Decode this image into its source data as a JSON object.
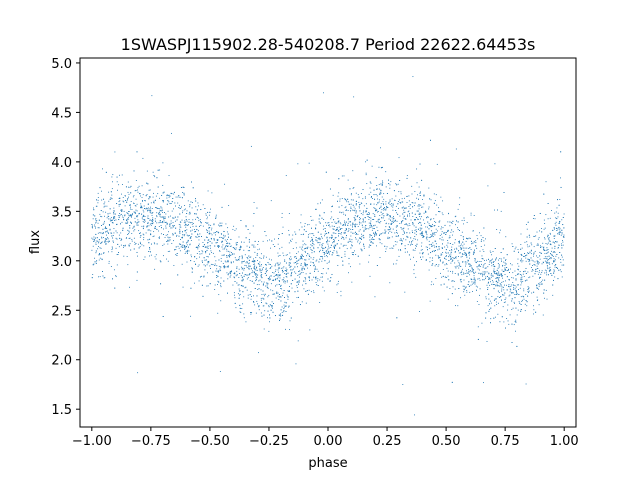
{
  "chart_data": {
    "type": "scatter",
    "title": "1SWASPJ115902.28-540208.7 Period 22622.64453s",
    "xlabel": "phase",
    "ylabel": "flux",
    "xlim": [
      -1.05,
      1.05
    ],
    "ylim": [
      1.32,
      5.05
    ],
    "x_ticks": [
      -1.0,
      -0.75,
      -0.5,
      -0.25,
      0.0,
      0.25,
      0.5,
      0.75,
      1.0
    ],
    "x_tick_labels": [
      "−1.00",
      "−0.75",
      "−0.50",
      "−0.25",
      "0.00",
      "0.25",
      "0.50",
      "0.75",
      "1.00"
    ],
    "y_ticks": [
      1.5,
      2.0,
      2.5,
      3.0,
      3.5,
      4.0,
      4.5,
      5.0
    ],
    "y_tick_labels": [
      "1.5",
      "2.0",
      "2.5",
      "3.0",
      "3.5",
      "4.0",
      "4.5",
      "5.0"
    ],
    "grid": false,
    "marker_color": "#1f77b4",
    "series": [
      {
        "x": [
          -1.0,
          -0.9,
          -0.8,
          -0.75,
          -0.7,
          -0.6,
          -0.5,
          -0.4,
          -0.3,
          -0.25,
          -0.2,
          -0.1,
          0.0,
          0.1,
          0.2,
          0.25,
          0.3,
          0.4,
          0.5,
          0.6,
          0.7,
          0.75,
          0.8,
          0.9,
          1.0
        ],
        "y": [
          3.22,
          3.35,
          3.43,
          3.45,
          3.43,
          3.32,
          3.15,
          2.98,
          2.82,
          2.78,
          2.8,
          2.98,
          3.22,
          3.35,
          3.43,
          3.45,
          3.43,
          3.32,
          3.15,
          2.98,
          2.82,
          2.78,
          2.8,
          2.98,
          3.22
        ]
      }
    ]
  }
}
